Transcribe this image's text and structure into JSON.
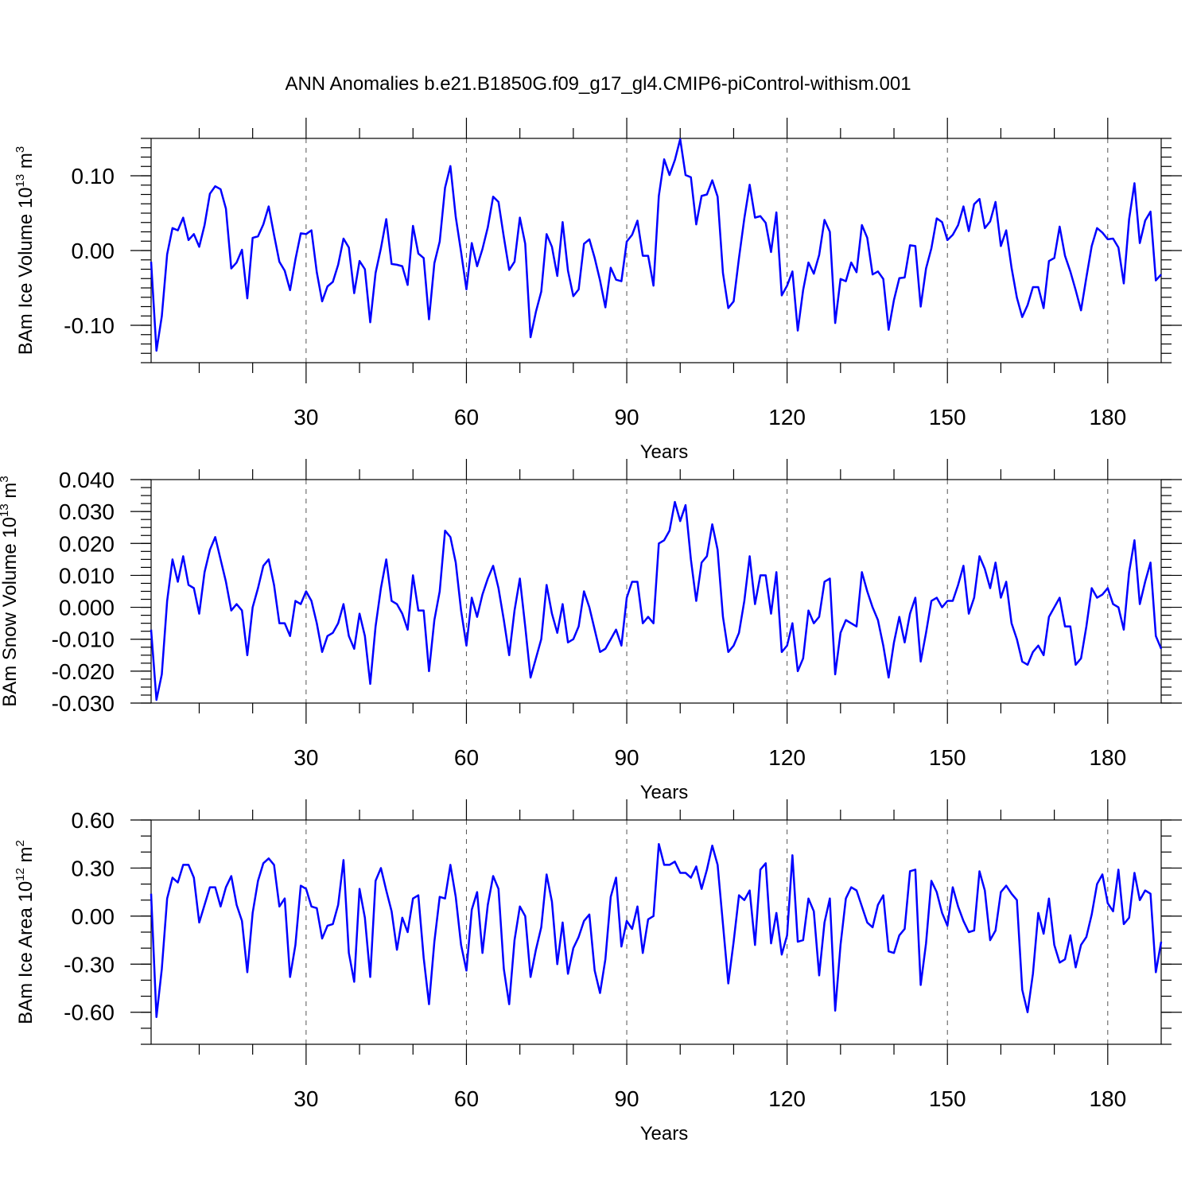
{
  "title": "ANN Anomalies b.e21.B1850G.f09_g17_gl4.CMIP6-piControl-withism.001",
  "chart_data": [
    {
      "type": "line",
      "ylabel": "BAm Ice Volume 10",
      "ylabel_sup": "13",
      "ylabel_unit": "m",
      "ylabel_unit_sup": "3",
      "xlabel": "Years",
      "xlim": [
        1,
        190
      ],
      "ylim": [
        -0.15,
        0.15
      ],
      "xticks": [
        30,
        60,
        90,
        120,
        150,
        180
      ],
      "xtick_labels": [
        "30",
        "60",
        "90",
        "120",
        "150",
        "180"
      ],
      "yticks": [
        -0.1,
        0.0,
        0.1
      ],
      "ytick_labels": [
        "-0.10",
        "0.00",
        "0.10"
      ],
      "y_minor_step": 0.0125,
      "series": [
        {
          "name": "BAm Ice Volume",
          "color": "#0000ff",
          "values": [
            -0.015,
            -0.134,
            -0.088,
            -0.005,
            0.03,
            0.027,
            0.044,
            0.014,
            0.022,
            0.005,
            0.034,
            0.076,
            0.086,
            0.082,
            0.056,
            -0.024,
            -0.016,
            0.001,
            -0.064,
            0.017,
            0.019,
            0.035,
            0.059,
            0.021,
            -0.015,
            -0.027,
            -0.053,
            -0.012,
            0.023,
            0.022,
            0.027,
            -0.029,
            -0.068,
            -0.048,
            -0.042,
            -0.019,
            0.016,
            0.004,
            -0.057,
            -0.014,
            -0.025,
            -0.096,
            -0.03,
            0.003,
            0.042,
            -0.018,
            -0.019,
            -0.021,
            -0.046,
            0.033,
            -0.004,
            -0.01,
            -0.092,
            -0.017,
            0.012,
            0.084,
            0.113,
            0.045,
            -0.002,
            -0.052,
            0.01,
            -0.021,
            0.002,
            0.031,
            0.072,
            0.065,
            0.018,
            -0.026,
            -0.015,
            0.044,
            0.009,
            -0.116,
            -0.082,
            -0.055,
            0.022,
            0.005,
            -0.034,
            0.038,
            -0.027,
            -0.061,
            -0.052,
            0.009,
            0.015,
            -0.01,
            -0.04,
            -0.076,
            -0.023,
            -0.039,
            -0.041,
            0.012,
            0.021,
            0.04,
            -0.007,
            -0.007,
            -0.047,
            0.073,
            0.122,
            0.101,
            0.121,
            0.149,
            0.101,
            0.098,
            0.035,
            0.073,
            0.075,
            0.094,
            0.072,
            -0.03,
            -0.077,
            -0.068,
            -0.01,
            0.043,
            0.088,
            0.044,
            0.046,
            0.037,
            -0.002,
            0.051,
            -0.06,
            -0.047,
            -0.028,
            -0.107,
            -0.053,
            -0.016,
            -0.031,
            -0.006,
            0.041,
            0.025,
            -0.097,
            -0.038,
            -0.041,
            -0.016,
            -0.029,
            0.034,
            0.017,
            -0.032,
            -0.028,
            -0.038,
            -0.106,
            -0.066,
            -0.037,
            -0.036,
            0.007,
            0.006,
            -0.075,
            -0.024,
            0.003,
            0.043,
            0.038,
            0.014,
            0.021,
            0.034,
            0.059,
            0.026,
            0.062,
            0.069,
            0.03,
            0.039,
            0.065,
            0.006,
            0.027,
            -0.023,
            -0.063,
            -0.089,
            -0.073,
            -0.049,
            -0.049,
            -0.077,
            -0.014,
            -0.01,
            0.032,
            -0.007,
            -0.028,
            -0.053,
            -0.08,
            -0.036,
            0.006,
            0.03,
            0.024,
            0.015,
            0.016,
            0.004,
            -0.044,
            0.042,
            0.09,
            0.01,
            0.04,
            0.052,
            -0.04,
            -0.032
          ]
        }
      ]
    },
    {
      "type": "line",
      "ylabel": "BAm Snow Volume 10",
      "ylabel_sup": "13",
      "ylabel_unit": "m",
      "ylabel_unit_sup": "3",
      "xlabel": "Years",
      "xlim": [
        1,
        190
      ],
      "ylim": [
        -0.03,
        0.04
      ],
      "xticks": [
        30,
        60,
        90,
        120,
        150,
        180
      ],
      "xtick_labels": [
        "30",
        "60",
        "90",
        "120",
        "150",
        "180"
      ],
      "yticks": [
        -0.03,
        -0.02,
        -0.01,
        0.0,
        0.01,
        0.02,
        0.03,
        0.04
      ],
      "ytick_labels": [
        "-0.030",
        "-0.020",
        "-0.010",
        "0.000",
        "0.010",
        "0.020",
        "0.030",
        "0.040"
      ],
      "y_minor_step": 0.0025,
      "series": [
        {
          "name": "BAm Snow Volume",
          "color": "#0000ff",
          "values": [
            -0.007,
            -0.029,
            -0.021,
            0.002,
            0.015,
            0.008,
            0.016,
            0.007,
            0.006,
            -0.002,
            0.011,
            0.018,
            0.022,
            0.015,
            0.008,
            -0.001,
            0.001,
            -0.001,
            -0.015,
            0.0,
            0.006,
            0.013,
            0.015,
            0.007,
            -0.005,
            -0.005,
            -0.009,
            0.002,
            0.001,
            0.005,
            0.002,
            -0.005,
            -0.014,
            -0.009,
            -0.008,
            -0.005,
            0.001,
            -0.009,
            -0.013,
            -0.002,
            -0.009,
            -0.024,
            -0.006,
            0.006,
            0.015,
            0.002,
            0.001,
            -0.002,
            -0.007,
            0.01,
            -0.001,
            -0.001,
            -0.02,
            -0.004,
            0.005,
            0.024,
            0.022,
            0.014,
            -0.001,
            -0.012,
            0.003,
            -0.003,
            0.004,
            0.009,
            0.013,
            0.006,
            -0.004,
            -0.015,
            -0.001,
            0.009,
            -0.006,
            -0.022,
            -0.016,
            -0.01,
            0.007,
            -0.002,
            -0.008,
            0.001,
            -0.011,
            -0.01,
            -0.006,
            0.005,
            0.0,
            -0.007,
            -0.014,
            -0.013,
            -0.01,
            -0.007,
            -0.012,
            0.003,
            0.008,
            0.008,
            -0.005,
            -0.003,
            -0.005,
            0.02,
            0.021,
            0.024,
            0.033,
            0.027,
            0.032,
            0.015,
            0.002,
            0.014,
            0.016,
            0.026,
            0.018,
            -0.003,
            -0.014,
            -0.012,
            -0.008,
            0.002,
            0.016,
            0.001,
            0.01,
            0.01,
            -0.002,
            0.011,
            -0.014,
            -0.012,
            -0.005,
            -0.02,
            -0.016,
            -0.001,
            -0.005,
            -0.003,
            0.008,
            0.009,
            -0.021,
            -0.008,
            -0.004,
            -0.005,
            -0.006,
            0.011,
            0.005,
            0.0,
            -0.004,
            -0.012,
            -0.022,
            -0.011,
            -0.003,
            -0.011,
            -0.002,
            0.003,
            -0.017,
            -0.008,
            0.002,
            0.003,
            0.0,
            0.002,
            0.002,
            0.007,
            0.013,
            -0.002,
            0.003,
            0.016,
            0.012,
            0.006,
            0.014,
            0.003,
            0.008,
            -0.005,
            -0.01,
            -0.017,
            -0.018,
            -0.014,
            -0.012,
            -0.015,
            -0.003,
            0.0,
            0.003,
            -0.006,
            -0.006,
            -0.018,
            -0.016,
            -0.006,
            0.006,
            0.003,
            0.004,
            0.006,
            0.001,
            0.0,
            -0.007,
            0.011,
            0.021,
            0.001,
            0.008,
            0.014,
            -0.009,
            -0.013
          ]
        }
      ]
    },
    {
      "type": "line",
      "ylabel": "BAm Ice Area 10",
      "ylabel_sup": "12",
      "ylabel_unit": "m",
      "ylabel_unit_sup": "2",
      "xlabel": "Years",
      "xlim": [
        1,
        190
      ],
      "ylim": [
        -0.8,
        0.6
      ],
      "xticks": [
        30,
        60,
        90,
        120,
        150,
        180
      ],
      "xtick_labels": [
        "30",
        "60",
        "90",
        "120",
        "150",
        "180"
      ],
      "yticks": [
        -0.6,
        -0.3,
        0.0,
        0.3,
        0.6
      ],
      "ytick_labels": [
        "-0.60",
        "-0.30",
        "0.00",
        "0.30",
        "0.60"
      ],
      "y_minor_step": 0.1,
      "series": [
        {
          "name": "BAm Ice Area",
          "color": "#0000ff",
          "values": [
            0.14,
            -0.63,
            -0.33,
            0.11,
            0.24,
            0.21,
            0.32,
            0.32,
            0.24,
            -0.04,
            0.07,
            0.18,
            0.18,
            0.06,
            0.18,
            0.25,
            0.07,
            -0.03,
            -0.35,
            0.02,
            0.22,
            0.33,
            0.36,
            0.32,
            0.06,
            0.11,
            -0.38,
            -0.18,
            0.19,
            0.17,
            0.06,
            0.05,
            -0.14,
            -0.06,
            -0.05,
            0.07,
            0.35,
            -0.23,
            -0.41,
            0.17,
            -0.01,
            -0.38,
            0.22,
            0.3,
            0.16,
            0.03,
            -0.21,
            -0.01,
            -0.1,
            0.11,
            0.13,
            -0.26,
            -0.55,
            -0.16,
            0.12,
            0.11,
            0.32,
            0.12,
            -0.18,
            -0.34,
            0.04,
            0.15,
            -0.23,
            0.07,
            0.25,
            0.17,
            -0.33,
            -0.55,
            -0.15,
            0.06,
            0.0,
            -0.38,
            -0.21,
            -0.07,
            0.26,
            0.09,
            -0.3,
            -0.04,
            -0.36,
            -0.2,
            -0.13,
            -0.03,
            0.01,
            -0.34,
            -0.48,
            -0.27,
            0.12,
            0.24,
            -0.19,
            -0.03,
            -0.08,
            0.06,
            -0.23,
            -0.02,
            0.0,
            0.45,
            0.32,
            0.32,
            0.34,
            0.27,
            0.27,
            0.24,
            0.31,
            0.17,
            0.29,
            0.44,
            0.32,
            -0.05,
            -0.42,
            -0.16,
            0.13,
            0.1,
            0.16,
            -0.18,
            0.29,
            0.33,
            -0.17,
            0.02,
            -0.24,
            -0.12,
            0.38,
            -0.16,
            -0.15,
            0.11,
            0.03,
            -0.37,
            -0.04,
            0.11,
            -0.59,
            -0.18,
            0.11,
            0.18,
            0.16,
            0.06,
            -0.04,
            -0.07,
            0.07,
            0.13,
            -0.22,
            -0.23,
            -0.12,
            -0.08,
            0.28,
            0.29,
            -0.43,
            -0.17,
            0.22,
            0.15,
            0.02,
            -0.06,
            0.18,
            0.06,
            -0.03,
            -0.1,
            -0.09,
            0.28,
            0.16,
            -0.15,
            -0.09,
            0.15,
            0.19,
            0.14,
            0.1,
            -0.46,
            -0.6,
            -0.36,
            0.02,
            -0.11,
            0.11,
            -0.18,
            -0.29,
            -0.27,
            -0.12,
            -0.32,
            -0.18,
            -0.13,
            0.01,
            0.2,
            0.26,
            0.08,
            0.03,
            0.29,
            -0.05,
            -0.01,
            0.27,
            0.1,
            0.16,
            0.14,
            -0.35,
            -0.16
          ]
        }
      ]
    }
  ]
}
